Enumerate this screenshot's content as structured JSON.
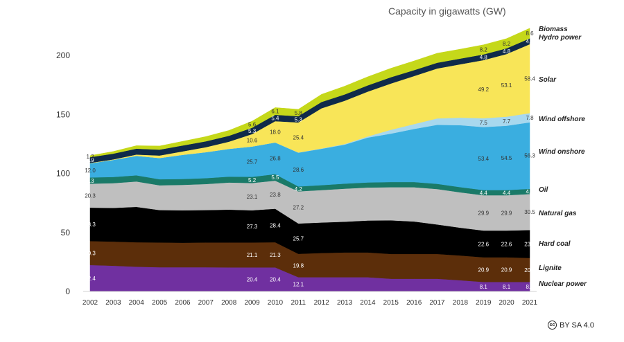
{
  "title": "Capacity in gigawatts (GW)",
  "license": {
    "icon": "cc",
    "text": "BY SA 4.0"
  },
  "chart_data": {
    "type": "area",
    "stacked": true,
    "title": "Capacity in gigawatts (GW)",
    "xlabel": "",
    "ylabel": "",
    "ylim": [
      0,
      225
    ],
    "yticks": [
      0,
      50,
      100,
      150,
      200
    ],
    "x": [
      "2002",
      "2003",
      "2004",
      "2005",
      "2006",
      "2007",
      "2008",
      "2009",
      "2010",
      "2011",
      "2012",
      "2013",
      "2014",
      "2015",
      "2016",
      "2017",
      "2018",
      "2019",
      "2020",
      "2021"
    ],
    "series": [
      {
        "name": "Nuclear power",
        "color": "#7030a0",
        "values": [
          22.4,
          21.8,
          21.0,
          20.5,
          20.5,
          20.5,
          20.4,
          20.4,
          20.4,
          12.1,
          12.1,
          12.1,
          12.1,
          10.8,
          10.8,
          10.8,
          9.5,
          8.1,
          8.1,
          8.1
        ],
        "labels": {
          "2002": "22.4",
          "2009": "20.4",
          "2010": "20.4",
          "2011": "12.1",
          "2019": "8.1",
          "2020": "8.1",
          "2021": "8.1"
        }
      },
      {
        "name": "Lignite",
        "color": "#5c2e0a",
        "values": [
          20.3,
          20.5,
          20.7,
          21.0,
          20.8,
          21.0,
          21.1,
          21.1,
          21.3,
          19.8,
          20.5,
          21.0,
          21.0,
          21.0,
          21.0,
          21.0,
          21.0,
          20.9,
          20.9,
          20.3
        ],
        "labels": {
          "2002": "20.3",
          "2009": "21.1",
          "2010": "21.3",
          "2011": "19.8",
          "2019": "20.9",
          "2020": "20.9",
          "2021": "20.3"
        }
      },
      {
        "name": "Hard coal",
        "color": "#000000",
        "values": [
          28.3,
          28.5,
          30.0,
          27.5,
          27.5,
          27.5,
          27.8,
          27.3,
          28.4,
          25.7,
          25.8,
          26.0,
          27.0,
          28.5,
          27.5,
          25.0,
          23.5,
          22.6,
          22.6,
          23.7
        ],
        "labels": {
          "2002": "28.3",
          "2009": "27.3",
          "2010": "28.4",
          "2011": "25.7",
          "2019": "22.6",
          "2020": "22.6",
          "2021": "23.7"
        }
      },
      {
        "name": "Natural gas",
        "color": "#bfbfbf",
        "values": [
          20.3,
          21.0,
          21.5,
          21.0,
          21.5,
          22.0,
          23.0,
          23.1,
          23.8,
          27.2,
          27.5,
          28.0,
          28.0,
          28.0,
          29.0,
          30.0,
          30.0,
          29.9,
          29.9,
          30.5
        ],
        "labels": {
          "2002": "20.3",
          "2009": "23.1",
          "2010": "23.8",
          "2011": "27.2",
          "2019": "29.9",
          "2020": "29.9",
          "2021": "30.5"
        }
      },
      {
        "name": "Oil",
        "color": "#1a7a68",
        "values": [
          5.3,
          5.2,
          5.2,
          5.1,
          5.0,
          5.0,
          5.0,
          5.2,
          5.5,
          4.2,
          4.2,
          4.3,
          4.3,
          4.4,
          4.4,
          4.4,
          4.4,
          4.4,
          4.4,
          4.4
        ],
        "labels": {
          "2002": "5.3",
          "2009": "5.2",
          "2010": "5.5",
          "2011": "4.2",
          "2019": "4.4",
          "2020": "4.4",
          "2021": "4.4"
        }
      },
      {
        "name": "Wind onshore",
        "color": "#3aaee0",
        "values": [
          12.0,
          14.5,
          16.5,
          18.0,
          20.5,
          22.0,
          23.5,
          25.7,
          26.8,
          28.6,
          30.8,
          33.0,
          38.0,
          41.0,
          45.0,
          50.0,
          52.5,
          53.4,
          54.5,
          56.3
        ],
        "labels": {
          "2002": "12.0",
          "2009": "25.7",
          "2010": "26.8",
          "2011": "28.6",
          "2019": "53.4",
          "2020": "54.5",
          "2021": "56.3"
        }
      },
      {
        "name": "Wind offshore",
        "color": "#a8d8ee",
        "values": [
          0,
          0,
          0,
          0,
          0,
          0,
          0,
          0,
          0.1,
          0.2,
          0.3,
          0.5,
          1.0,
          3.3,
          4.1,
          5.4,
          6.4,
          7.5,
          7.7,
          7.8
        ],
        "labels": {
          "2019": "7.5",
          "2020": "7.7",
          "2021": "7.8"
        }
      },
      {
        "name": "Solar",
        "color": "#f8e558",
        "values": [
          0.3,
          0.4,
          1.1,
          2.1,
          2.9,
          4.2,
          6.1,
          10.6,
          18.0,
          25.4,
          34.0,
          36.7,
          37.9,
          39.2,
          40.7,
          42.3,
          45.2,
          49.2,
          53.1,
          58.4
        ],
        "labels": {
          "2009": "10.6",
          "2010": "18.0",
          "2011": "25.4",
          "2019": "49.2",
          "2020": "53.1",
          "2021": "58.4"
        }
      },
      {
        "name": "Hydro power",
        "color": "#0f2a4a",
        "values": [
          4.9,
          4.9,
          5.0,
          5.0,
          5.0,
          5.0,
          5.0,
          5.3,
          5.4,
          5.3,
          5.3,
          5.3,
          5.3,
          5.3,
          5.0,
          4.9,
          4.8,
          4.8,
          4.8,
          4.9
        ],
        "labels": {
          "2002": "4.9",
          "2009": "5.3",
          "2010": "5.4",
          "2011": "5.3",
          "2019": "4.8",
          "2020": "4.8",
          "2021": "4.9"
        }
      },
      {
        "name": "Biomass",
        "color": "#c5d81a",
        "values": [
          1.3,
          1.8,
          2.5,
          3.0,
          3.5,
          4.0,
          4.5,
          5.6,
          6.1,
          5.8,
          6.5,
          7.0,
          7.3,
          7.6,
          7.8,
          8.0,
          8.0,
          8.2,
          8.2,
          8.6
        ],
        "labels": {
          "2002": "1.3",
          "2009": "5.6",
          "2010": "6.1",
          "2011": "5.8",
          "2019": "8.2",
          "2020": "8.2",
          "2021": "8.6"
        }
      }
    ],
    "legend": [
      "Biomass",
      "Hydro power",
      "Solar",
      "Wind offshore",
      "Wind onshore",
      "Oil",
      "Natural gas",
      "Hard coal",
      "Lignite",
      "Nuclear power"
    ]
  }
}
